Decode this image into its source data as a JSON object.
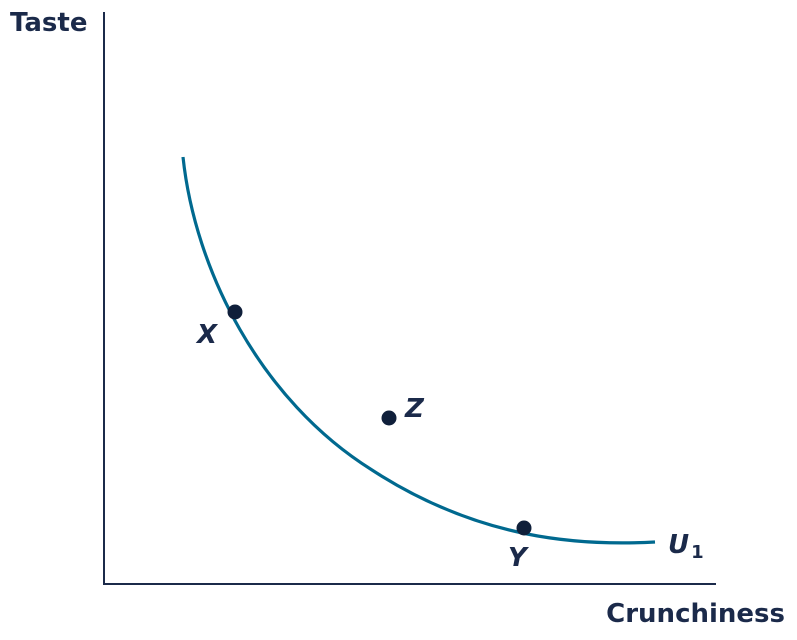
{
  "axes": {
    "y_label": "Taste",
    "x_label": "Crunchiness"
  },
  "curve": {
    "label_main": "U",
    "label_sub": "1",
    "color": "#00698f"
  },
  "points": [
    {
      "id": "X",
      "label": "X",
      "on_curve": true
    },
    {
      "id": "Z",
      "label": "Z",
      "on_curve": false
    },
    {
      "id": "Y",
      "label": "Y",
      "on_curve": true
    }
  ],
  "colors": {
    "axis": "#1b2a4a",
    "point": "#0f1f3a",
    "text": "#1b2a4a"
  }
}
